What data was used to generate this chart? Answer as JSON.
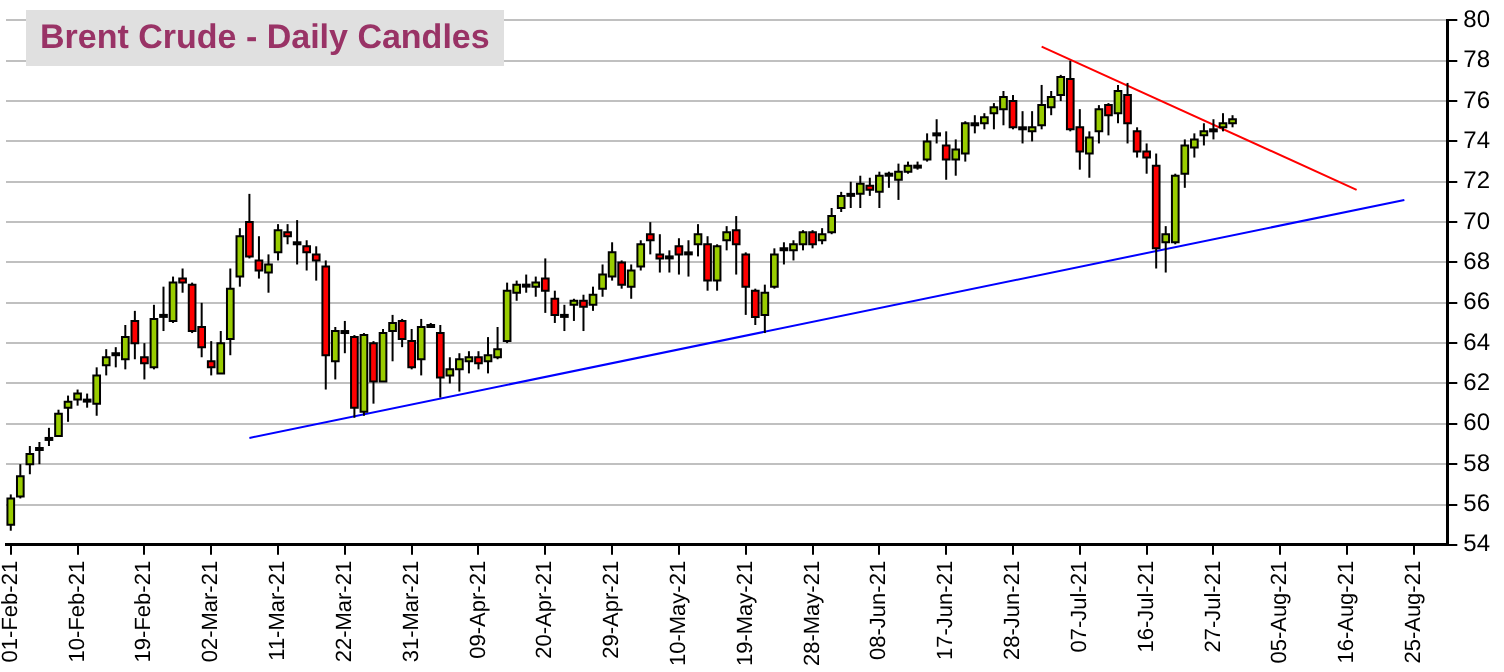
{
  "chart_data": {
    "type": "candlestick",
    "title": "Brent Crude - Daily Candles",
    "categories": [
      "01-Feb-21",
      null,
      null,
      null,
      null,
      null,
      null,
      "10-Feb-21",
      null,
      null,
      null,
      null,
      null,
      null,
      "19-Feb-21",
      null,
      null,
      null,
      null,
      null,
      null,
      "02-Mar-21",
      null,
      null,
      null,
      null,
      null,
      null,
      "11-Mar-21",
      null,
      null,
      null,
      null,
      null,
      null,
      "22-Mar-21",
      null,
      null,
      null,
      null,
      null,
      null,
      "31-Mar-21",
      null,
      null,
      null,
      null,
      null,
      null,
      "09-Apr-21",
      null,
      null,
      null,
      null,
      null,
      null,
      "20-Apr-21",
      null,
      null,
      null,
      null,
      null,
      null,
      "29-Apr-21",
      null,
      null,
      null,
      null,
      null,
      null,
      "10-May-21",
      null,
      null,
      null,
      null,
      null,
      null,
      "19-May-21",
      null,
      null,
      null,
      null,
      null,
      null,
      "28-May-21",
      null,
      null,
      null,
      null,
      null,
      null,
      "08-Jun-21",
      null,
      null,
      null,
      null,
      null,
      null,
      "17-Jun-21",
      null,
      null,
      null,
      null,
      null,
      null,
      "28-Jun-21",
      null,
      null,
      null,
      null,
      null,
      null,
      "07-Jul-21",
      null,
      null,
      null,
      null,
      null,
      null,
      "16-Jul-21",
      null,
      null,
      null,
      null,
      null,
      null,
      "27-Jul-21",
      null,
      null,
      null,
      null,
      null,
      null,
      "05-Aug-21",
      null,
      null,
      null,
      null,
      null,
      null,
      "16-Aug-21",
      null,
      null,
      null,
      null,
      null,
      null,
      "25-Aug-21",
      null,
      null,
      null
    ],
    "ylim": [
      54,
      80
    ],
    "yticks": [
      54,
      56,
      58,
      60,
      62,
      64,
      66,
      68,
      70,
      72,
      74,
      76,
      78,
      80
    ],
    "grid": "y",
    "series": [
      {
        "type": "line",
        "color": "#0000ff",
        "values": [
          null,
          null,
          null,
          null,
          null,
          null,
          null,
          null,
          null,
          null,
          null,
          null,
          null,
          null,
          null,
          null,
          null,
          null,
          null,
          null,
          null,
          null,
          null,
          null,
          null,
          59.3,
          null,
          null,
          null,
          null,
          null,
          null,
          null,
          null,
          null,
          null,
          null,
          null,
          null,
          null,
          null,
          null,
          null,
          null,
          null,
          null,
          null,
          null,
          null,
          null,
          null,
          null,
          null,
          null,
          null,
          null,
          null,
          null,
          null,
          null,
          null,
          null,
          null,
          null,
          null,
          null,
          null,
          null,
          null,
          null,
          null,
          null,
          null,
          null,
          null,
          null,
          null,
          null,
          null,
          null,
          null,
          null,
          null,
          null,
          null,
          null,
          null,
          null,
          null,
          null,
          null,
          null,
          null,
          null,
          null,
          null,
          null,
          null,
          null,
          null,
          null,
          null,
          null,
          null,
          null,
          null,
          null,
          null,
          null,
          null,
          null,
          null,
          null,
          null,
          null,
          null,
          null,
          null,
          null,
          null,
          null,
          null,
          null,
          null,
          null,
          null,
          null,
          null,
          null,
          null,
          null,
          null,
          null,
          null,
          null,
          null,
          null,
          null,
          null,
          null,
          null,
          null,
          null,
          null,
          null,
          null,
          71.1,
          null,
          null,
          null,
          null
        ]
      },
      {
        "type": "line",
        "color": "#ff0000",
        "values": [
          null,
          null,
          null,
          null,
          null,
          null,
          null,
          null,
          null,
          null,
          null,
          null,
          null,
          null,
          null,
          null,
          null,
          null,
          null,
          null,
          null,
          null,
          null,
          null,
          null,
          null,
          null,
          null,
          null,
          null,
          null,
          null,
          null,
          null,
          null,
          null,
          null,
          null,
          null,
          null,
          null,
          null,
          null,
          null,
          null,
          null,
          null,
          null,
          null,
          null,
          null,
          null,
          null,
          null,
          null,
          null,
          null,
          null,
          null,
          null,
          null,
          null,
          null,
          null,
          null,
          null,
          null,
          null,
          null,
          null,
          null,
          null,
          null,
          null,
          null,
          null,
          null,
          null,
          null,
          null,
          null,
          null,
          null,
          null,
          null,
          null,
          null,
          null,
          null,
          null,
          null,
          null,
          null,
          null,
          null,
          null,
          null,
          null,
          null,
          null,
          null,
          null,
          null,
          null,
          null,
          null,
          null,
          null,
          78.7,
          null,
          null,
          null,
          null,
          null,
          null,
          null,
          null,
          null,
          null,
          null,
          null,
          null,
          null,
          null,
          null,
          null,
          null,
          null,
          null,
          null,
          null,
          null,
          null,
          null,
          null,
          null,
          null,
          null,
          null,
          null,
          null,
          71.6,
          null,
          null,
          null,
          null,
          null,
          null,
          null,
          null,
          null
        ]
      },
      {
        "type": "candlestick",
        "colors": [
          "#99cc00",
          "#99cc00",
          "#99cc00",
          "#99cc00",
          "#99cc00",
          "#99cc00",
          "#99cc00",
          "#99cc00",
          "#99cc00",
          "#99cc00",
          "#99cc00",
          "#99cc00",
          "#99cc00",
          "#ff0000",
          "#ff0000",
          "#99cc00",
          "#99cc00",
          "#99cc00",
          "#ff0000",
          "#ff0000",
          "#ff0000",
          "#ff0000",
          "#99cc00",
          "#99cc00",
          "#99cc00",
          "#ff0000",
          "#ff0000",
          "#99cc00",
          "#99cc00",
          "#ff0000",
          "#99cc00",
          "#ff0000",
          "#ff0000",
          "#ff0000",
          "#99cc00",
          "#99cc00",
          "#ff0000",
          "#99cc00",
          "#ff0000",
          "#99cc00",
          "#99cc00",
          "#ff0000",
          "#ff0000",
          "#99cc00",
          "#99cc00",
          "#ff0000",
          "#99cc00",
          "#99cc00",
          "#99cc00",
          "#ff0000",
          "#99cc00",
          "#99cc00",
          "#99cc00",
          "#99cc00",
          "#99cc00",
          "#99cc00",
          "#ff0000",
          "#ff0000",
          "#99cc00",
          "#99cc00",
          "#ff0000",
          "#99cc00",
          "#99cc00",
          "#99cc00",
          "#ff0000",
          "#99cc00",
          "#99cc00",
          "#ff0000",
          "#ff0000",
          "#99cc00",
          "#ff0000",
          "#99cc00",
          "#99cc00",
          "#ff0000",
          "#99cc00",
          "#99cc00",
          "#ff0000",
          "#ff0000",
          "#ff0000",
          "#99cc00",
          "#99cc00",
          "#99cc00",
          "#99cc00",
          "#99cc00",
          "#ff0000",
          "#99cc00",
          "#99cc00",
          "#99cc00",
          "#99cc00",
          "#99cc00",
          "#ff0000",
          "#99cc00",
          "#99cc00",
          "#99cc00",
          "#99cc00",
          "#99cc00",
          "#99cc00",
          "#99cc00",
          "#ff0000",
          "#99cc00",
          "#99cc00",
          "#99cc00",
          "#99cc00",
          "#99cc00",
          "#99cc00",
          "#ff0000",
          "#99cc00",
          "#99cc00",
          "#99cc00",
          "#99cc00",
          "#99cc00",
          "#ff0000",
          "#ff0000",
          "#99cc00",
          "#99cc00",
          "#ff0000",
          "#99cc00",
          "#ff0000",
          "#ff0000",
          "#ff0000",
          "#ff0000",
          "#99cc00",
          "#99cc00",
          "#99cc00",
          "#99cc00",
          "#99cc00",
          "#99cc00",
          "#99cc00",
          "#99cc00",
          null,
          null,
          null,
          null,
          null,
          null,
          null,
          null,
          null,
          null,
          null,
          null,
          null,
          null,
          null,
          null,
          null,
          null,
          null,
          null,
          null,
          null
        ],
        "ohlc": [
          [
            55.0,
            56.5,
            54.7,
            56.3
          ],
          [
            56.4,
            58.0,
            56.3,
            57.4
          ],
          [
            58.0,
            58.9,
            57.5,
            58.5
          ],
          [
            58.7,
            59.1,
            58.0,
            58.8
          ],
          [
            59.3,
            59.8,
            58.9,
            59.3
          ],
          [
            59.4,
            60.7,
            59.4,
            60.5
          ],
          [
            60.8,
            61.4,
            60.1,
            61.1
          ],
          [
            61.2,
            61.7,
            60.9,
            61.5
          ],
          [
            61.2,
            61.5,
            60.8,
            61.2
          ],
          [
            61.0,
            62.8,
            60.4,
            62.4
          ],
          [
            62.9,
            63.7,
            62.4,
            63.3
          ],
          [
            63.5,
            63.8,
            62.8,
            63.5
          ],
          [
            63.2,
            64.9,
            62.7,
            64.3
          ],
          [
            65.1,
            65.6,
            63.2,
            64.0
          ],
          [
            63.3,
            64.0,
            62.2,
            63.0
          ],
          [
            62.8,
            65.9,
            62.7,
            65.2
          ],
          [
            65.4,
            66.8,
            64.6,
            65.4
          ],
          [
            65.1,
            67.3,
            65.0,
            67.0
          ],
          [
            67.2,
            67.7,
            66.5,
            67.0
          ],
          [
            66.9,
            67.0,
            64.5,
            64.6
          ],
          [
            64.8,
            66.0,
            63.3,
            63.8
          ],
          [
            63.1,
            64.1,
            62.4,
            62.8
          ],
          [
            62.5,
            64.6,
            62.5,
            64.0
          ],
          [
            64.2,
            67.7,
            63.4,
            66.7
          ],
          [
            67.3,
            69.7,
            66.8,
            69.3
          ],
          [
            70.0,
            71.4,
            68.2,
            68.3
          ],
          [
            68.1,
            69.3,
            67.2,
            67.6
          ],
          [
            67.5,
            68.4,
            66.5,
            67.9
          ],
          [
            68.5,
            69.9,
            68.1,
            69.6
          ],
          [
            69.5,
            69.9,
            68.9,
            69.3
          ],
          [
            69.0,
            70.1,
            67.9,
            69.0
          ],
          [
            68.8,
            69.1,
            67.6,
            68.5
          ],
          [
            68.4,
            68.8,
            67.1,
            68.1
          ],
          [
            67.8,
            68.1,
            61.7,
            63.4
          ],
          [
            63.1,
            64.8,
            62.2,
            64.6
          ],
          [
            64.6,
            65.1,
            63.5,
            64.6
          ],
          [
            64.3,
            64.4,
            60.3,
            60.8
          ],
          [
            60.6,
            64.5,
            60.4,
            64.4
          ],
          [
            64.0,
            64.1,
            61.0,
            62.1
          ],
          [
            62.1,
            64.7,
            62.1,
            64.5
          ],
          [
            64.6,
            65.4,
            63.1,
            65.0
          ],
          [
            65.1,
            65.2,
            63.8,
            64.2
          ],
          [
            64.1,
            64.7,
            62.7,
            62.8
          ],
          [
            63.2,
            65.2,
            62.4,
            64.8
          ],
          [
            64.9,
            65.0,
            64.8,
            64.9
          ],
          [
            64.5,
            64.9,
            61.3,
            62.3
          ],
          [
            62.4,
            63.3,
            62.0,
            62.7
          ],
          [
            62.7,
            63.5,
            61.6,
            63.2
          ],
          [
            63.1,
            63.6,
            62.5,
            63.3
          ],
          [
            63.3,
            63.6,
            62.7,
            63.0
          ],
          [
            63.1,
            64.3,
            62.5,
            63.4
          ],
          [
            63.3,
            64.8,
            63.2,
            63.7
          ],
          [
            64.1,
            67.0,
            64.0,
            66.6
          ],
          [
            66.5,
            67.1,
            66.1,
            66.9
          ],
          [
            66.9,
            67.4,
            66.5,
            66.9
          ],
          [
            66.8,
            67.3,
            66.3,
            67.0
          ],
          [
            67.2,
            68.2,
            65.5,
            66.6
          ],
          [
            66.2,
            66.6,
            65.0,
            65.4
          ],
          [
            65.4,
            65.9,
            64.6,
            65.4
          ],
          [
            65.9,
            66.2,
            65.1,
            66.1
          ],
          [
            66.1,
            66.4,
            64.6,
            65.8
          ],
          [
            65.9,
            66.8,
            65.6,
            66.4
          ],
          [
            66.7,
            67.9,
            66.3,
            67.4
          ],
          [
            67.3,
            69.0,
            67.1,
            68.5
          ],
          [
            68.0,
            68.1,
            66.7,
            66.9
          ],
          [
            66.8,
            67.9,
            66.2,
            67.6
          ],
          [
            67.8,
            69.1,
            67.6,
            68.9
          ],
          [
            69.4,
            70.0,
            68.4,
            69.1
          ],
          [
            68.4,
            69.4,
            67.5,
            68.2
          ],
          [
            68.3,
            68.6,
            67.5,
            68.3
          ],
          [
            68.8,
            69.2,
            67.4,
            68.4
          ],
          [
            68.5,
            69.1,
            67.3,
            68.5
          ],
          [
            68.9,
            69.9,
            68.3,
            69.4
          ],
          [
            68.9,
            69.3,
            66.6,
            67.1
          ],
          [
            67.1,
            68.9,
            66.6,
            68.8
          ],
          [
            69.1,
            69.8,
            68.6,
            69.5
          ],
          [
            69.6,
            70.3,
            67.4,
            68.9
          ],
          [
            68.4,
            68.5,
            65.4,
            66.8
          ],
          [
            66.6,
            66.7,
            64.9,
            65.3
          ],
          [
            65.4,
            66.9,
            64.5,
            66.5
          ],
          [
            66.8,
            68.7,
            66.7,
            68.4
          ],
          [
            68.6,
            69.0,
            67.9,
            68.7
          ],
          [
            68.6,
            69.1,
            68.1,
            68.9
          ],
          [
            68.9,
            69.6,
            68.6,
            69.5
          ],
          [
            69.5,
            69.6,
            68.7,
            68.9
          ],
          [
            69.1,
            69.7,
            68.9,
            69.4
          ],
          [
            69.5,
            70.7,
            69.4,
            70.3
          ],
          [
            70.7,
            71.5,
            70.5,
            71.3
          ],
          [
            71.4,
            72.0,
            70.7,
            71.4
          ],
          [
            71.4,
            72.3,
            70.7,
            71.9
          ],
          [
            71.8,
            72.2,
            71.3,
            71.6
          ],
          [
            71.5,
            72.5,
            70.7,
            72.3
          ],
          [
            72.4,
            72.5,
            71.7,
            72.4
          ],
          [
            72.1,
            72.9,
            71.1,
            72.5
          ],
          [
            72.5,
            73.0,
            72.4,
            72.8
          ],
          [
            72.8,
            73.0,
            72.6,
            72.8
          ],
          [
            73.1,
            74.4,
            73.0,
            74.0
          ],
          [
            74.4,
            75.1,
            73.9,
            74.4
          ],
          [
            73.8,
            74.5,
            72.1,
            73.1
          ],
          [
            73.1,
            74.1,
            72.3,
            73.6
          ],
          [
            73.4,
            75.0,
            73.0,
            74.9
          ],
          [
            74.9,
            75.3,
            74.4,
            74.9
          ],
          [
            74.9,
            75.4,
            74.6,
            75.2
          ],
          [
            75.4,
            75.9,
            74.6,
            75.7
          ],
          [
            75.6,
            76.5,
            74.8,
            76.2
          ],
          [
            76.0,
            76.3,
            74.6,
            74.7
          ],
          [
            74.7,
            75.5,
            73.9,
            74.7
          ],
          [
            74.5,
            75.5,
            74.0,
            74.7
          ],
          [
            74.8,
            76.8,
            74.6,
            75.8
          ],
          [
            75.7,
            76.5,
            75.3,
            76.2
          ],
          [
            76.3,
            77.3,
            76.0,
            77.2
          ],
          [
            77.1,
            78.0,
            74.5,
            74.6
          ],
          [
            74.7,
            75.6,
            72.6,
            73.5
          ],
          [
            73.4,
            74.5,
            72.2,
            74.2
          ],
          [
            74.5,
            75.8,
            73.9,
            75.6
          ],
          [
            75.8,
            75.9,
            74.3,
            75.3
          ],
          [
            75.4,
            76.8,
            74.9,
            76.5
          ],
          [
            76.3,
            76.9,
            73.9,
            74.9
          ],
          [
            74.5,
            74.7,
            73.2,
            73.5
          ],
          [
            73.5,
            73.9,
            72.4,
            73.2
          ],
          [
            72.8,
            73.4,
            67.7,
            68.7
          ],
          [
            69.0,
            69.8,
            67.5,
            69.4
          ],
          [
            69.0,
            72.4,
            68.9,
            72.3
          ],
          [
            72.4,
            74.1,
            71.7,
            73.8
          ],
          [
            73.7,
            74.4,
            73.2,
            74.1
          ],
          [
            74.3,
            74.9,
            73.8,
            74.5
          ],
          [
            74.6,
            75.1,
            74.1,
            74.6
          ],
          [
            74.7,
            75.4,
            74.5,
            74.9
          ],
          [
            74.9,
            75.3,
            74.7,
            75.1
          ],
          null,
          null,
          null,
          null,
          null,
          null,
          null,
          null,
          null,
          null,
          null,
          null,
          null,
          null,
          null,
          null,
          null,
          null,
          null,
          null,
          null,
          null
        ]
      }
    ]
  }
}
